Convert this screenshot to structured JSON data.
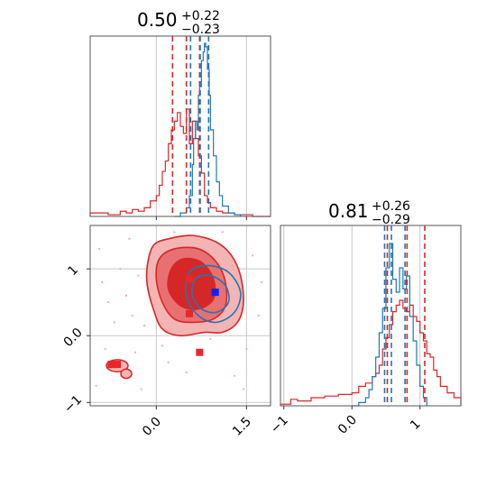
{
  "chart_data": [
    {
      "type": "histogram",
      "panel": "marginal-param-1",
      "title": {
        "median": "0.50",
        "plus": "+0.22",
        "minus": "−0.23"
      },
      "xlim": [
        -1.1,
        1.9
      ],
      "grid": true,
      "tick_values": [
        0.0,
        1.5
      ],
      "series": [
        {
          "color": "#d62728",
          "x": [
            -1.1,
            -0.8,
            -0.6,
            -0.5,
            -0.4,
            -0.3,
            -0.2,
            -0.1,
            0.0,
            0.05,
            0.1,
            0.15,
            0.2,
            0.25,
            0.3,
            0.35,
            0.4,
            0.45,
            0.5,
            0.55,
            0.6,
            0.65,
            0.7,
            0.75,
            0.8,
            0.85,
            0.9,
            1.0,
            1.1,
            1.3,
            1.6,
            1.9
          ],
          "density": [
            0.02,
            0.01,
            0.03,
            0.02,
            0.04,
            0.03,
            0.05,
            0.09,
            0.12,
            0.18,
            0.26,
            0.32,
            0.42,
            0.5,
            0.55,
            0.6,
            0.52,
            0.48,
            0.62,
            0.42,
            0.55,
            0.45,
            0.35,
            0.25,
            0.12,
            0.08,
            0.05,
            0.03,
            0.02,
            0.01,
            0.0,
            0.0
          ]
        },
        {
          "color": "#1f77b4",
          "x": [
            0.3,
            0.4,
            0.5,
            0.55,
            0.6,
            0.62,
            0.65,
            0.68,
            0.7,
            0.72,
            0.75,
            0.78,
            0.8,
            0.82,
            0.85,
            0.88,
            0.9,
            0.95,
            1.0,
            1.05,
            1.1,
            1.2,
            1.3,
            1.4
          ],
          "density": [
            0.0,
            0.02,
            0.05,
            0.12,
            0.3,
            0.45,
            0.55,
            0.5,
            0.7,
            0.75,
            0.9,
            0.95,
            1.0,
            0.98,
            0.85,
            0.7,
            0.5,
            0.35,
            0.2,
            0.12,
            0.06,
            0.02,
            0.01,
            0.0
          ]
        }
      ],
      "quantile_lines": [
        {
          "color": "#d62728",
          "values": [
            0.27,
            0.5,
            0.72
          ]
        },
        {
          "color": "#1f77b4",
          "values": [
            0.57,
            0.73,
            0.87
          ]
        }
      ]
    },
    {
      "type": "histogram",
      "panel": "marginal-param-2",
      "title": {
        "median": "0.81",
        "plus": "+0.26",
        "minus": "−0.29"
      },
      "xlim": [
        -1.05,
        1.6
      ],
      "grid": true,
      "tick_values": [
        -1,
        0,
        1
      ],
      "series": [
        {
          "color": "#d62728",
          "x": [
            -1.05,
            -0.9,
            -0.8,
            -0.6,
            -0.4,
            -0.2,
            0.0,
            0.1,
            0.2,
            0.3,
            0.35,
            0.4,
            0.45,
            0.5,
            0.55,
            0.6,
            0.65,
            0.7,
            0.75,
            0.8,
            0.85,
            0.9,
            0.95,
            1.0,
            1.05,
            1.1,
            1.15,
            1.2,
            1.25,
            1.3,
            1.4,
            1.5,
            1.6
          ],
          "density": [
            0.01,
            0.04,
            0.03,
            0.05,
            0.06,
            0.07,
            0.08,
            0.12,
            0.14,
            0.18,
            0.2,
            0.25,
            0.35,
            0.42,
            0.5,
            0.58,
            0.62,
            0.65,
            0.6,
            0.58,
            0.62,
            0.55,
            0.52,
            0.45,
            0.4,
            0.32,
            0.3,
            0.22,
            0.18,
            0.12,
            0.08,
            0.05,
            0.03
          ]
        },
        {
          "color": "#1f77b4",
          "x": [
            0.0,
            0.1,
            0.2,
            0.25,
            0.3,
            0.35,
            0.4,
            0.45,
            0.5,
            0.55,
            0.6,
            0.65,
            0.7,
            0.75,
            0.8,
            0.85,
            0.9,
            0.95,
            1.0,
            1.05,
            1.1
          ],
          "density": [
            0.0,
            0.02,
            0.05,
            0.1,
            0.18,
            0.3,
            0.45,
            0.6,
            0.85,
            1.0,
            0.78,
            0.7,
            0.85,
            0.72,
            0.8,
            0.55,
            0.4,
            0.25,
            0.12,
            0.05,
            0.0
          ]
        }
      ],
      "quantile_lines": [
        {
          "color": "#d62728",
          "values": [
            0.52,
            0.81,
            1.07
          ]
        },
        {
          "color": "#1f77b4",
          "values": [
            0.48,
            0.58,
            0.78
          ]
        }
      ]
    },
    {
      "type": "contour",
      "panel": "joint-param-1-param-2",
      "xlim": [
        -1.1,
        1.9
      ],
      "ylim": [
        -1.05,
        1.65
      ],
      "grid": true,
      "x_tick_values": [
        0.0,
        1.5
      ],
      "y_tick_values": [
        -1,
        0,
        1
      ],
      "red_contours": [
        {
          "level": "outer",
          "fill": "#f4b4b4",
          "points": [
            [
              -0.05,
              1.35
            ],
            [
              0.2,
              1.45
            ],
            [
              0.6,
              1.5
            ],
            [
              1.0,
              1.4
            ],
            [
              1.25,
              1.2
            ],
            [
              1.4,
              0.9
            ],
            [
              1.45,
              0.5
            ],
            [
              1.35,
              0.2
            ],
            [
              1.1,
              0.05
            ],
            [
              0.8,
              0.05
            ],
            [
              0.4,
              0.0
            ],
            [
              0.1,
              0.1
            ],
            [
              -0.05,
              0.4
            ],
            [
              -0.15,
              0.75
            ],
            [
              -0.15,
              1.05
            ]
          ]
        },
        {
          "level": "middle",
          "fill": "#e87070",
          "points": [
            [
              0.05,
              1.15
            ],
            [
              0.3,
              1.3
            ],
            [
              0.7,
              1.3
            ],
            [
              1.0,
              1.1
            ],
            [
              1.15,
              0.8
            ],
            [
              1.15,
              0.45
            ],
            [
              0.95,
              0.25
            ],
            [
              0.6,
              0.2
            ],
            [
              0.3,
              0.25
            ],
            [
              0.1,
              0.5
            ],
            [
              0.0,
              0.85
            ]
          ]
        },
        {
          "level": "inner",
          "fill": "#d62728",
          "points": [
            [
              0.25,
              1.0
            ],
            [
              0.45,
              1.15
            ],
            [
              0.75,
              1.1
            ],
            [
              0.95,
              0.85
            ],
            [
              0.95,
              0.55
            ],
            [
              0.7,
              0.4
            ],
            [
              0.4,
              0.45
            ],
            [
              0.2,
              0.7
            ]
          ]
        }
      ],
      "blue_contours": [
        {
          "points": [
            [
              0.55,
              0.95
            ],
            [
              0.85,
              1.05
            ],
            [
              1.2,
              0.95
            ],
            [
              1.4,
              0.65
            ],
            [
              1.3,
              0.35
            ],
            [
              1.0,
              0.2
            ],
            [
              0.7,
              0.3
            ],
            [
              0.5,
              0.6
            ]
          ]
        },
        {
          "points": [
            [
              0.65,
              0.85
            ],
            [
              0.9,
              0.9
            ],
            [
              1.15,
              0.75
            ],
            [
              1.2,
              0.5
            ],
            [
              1.0,
              0.35
            ],
            [
              0.75,
              0.4
            ],
            [
              0.6,
              0.6
            ]
          ]
        }
      ],
      "islands": [
        {
          "fill": "#f4b4b4",
          "cx": -0.65,
          "cy": -0.45,
          "rx": 0.18,
          "ry": 0.09
        },
        {
          "fill": "#f4b4b4",
          "cx": -0.5,
          "cy": -0.57,
          "rx": 0.09,
          "ry": 0.07
        }
      ],
      "points_red": [
        [
          0.55,
          0.85
        ],
        [
          0.55,
          0.33
        ],
        [
          -0.75,
          -0.43
        ],
        [
          -0.65,
          -0.43
        ],
        [
          0.72,
          -0.25
        ]
      ],
      "point_blue": [
        0.98,
        0.65
      ],
      "scatter_pink": [
        [
          -0.9,
          0.8
        ],
        [
          -0.8,
          0.5
        ],
        [
          -0.7,
          0.2
        ],
        [
          -0.6,
          1.0
        ],
        [
          -0.5,
          0.6
        ],
        [
          -0.4,
          0.3
        ],
        [
          -0.3,
          0.9
        ],
        [
          -0.2,
          0.15
        ],
        [
          -0.85,
          -0.2
        ],
        [
          -0.35,
          -0.25
        ],
        [
          0.2,
          -0.4
        ],
        [
          0.5,
          -0.55
        ],
        [
          1.3,
          -0.6
        ],
        [
          1.5,
          -0.2
        ],
        [
          1.7,
          0.3
        ],
        [
          1.6,
          1.2
        ],
        [
          1.75,
          0.8
        ],
        [
          -0.95,
          1.3
        ],
        [
          -0.45,
          1.45
        ],
        [
          0.1,
          -0.15
        ],
        [
          0.9,
          -0.05
        ],
        [
          1.1,
          1.55
        ],
        [
          -1.0,
          -0.75
        ],
        [
          0.3,
          1.55
        ],
        [
          -0.25,
          -0.8
        ],
        [
          1.45,
          -0.8
        ]
      ]
    }
  ]
}
